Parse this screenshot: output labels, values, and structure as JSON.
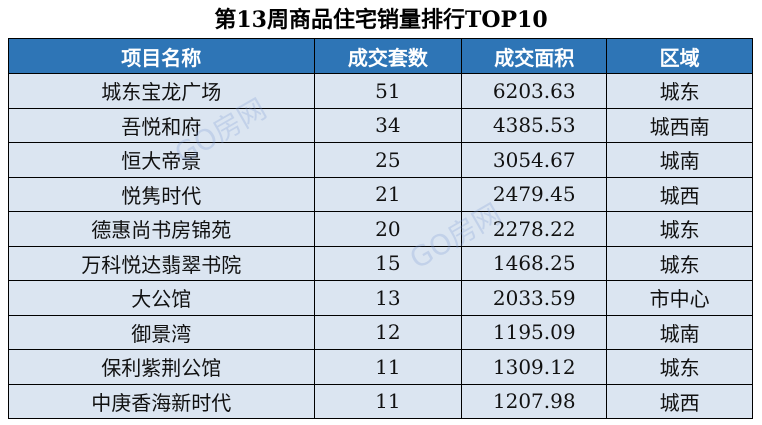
{
  "title": "第13周商品住宅销量排行TOP10",
  "table": {
    "header": [
      "项目名称",
      "成交套数",
      "成交面积",
      "区域"
    ],
    "rows": [
      [
        "城东宝龙广场",
        "51",
        "6203.63",
        "城东"
      ],
      [
        "吾悦和府",
        "34",
        "4385.53",
        "城西南"
      ],
      [
        "恒大帝景",
        "25",
        "3054.67",
        "城南"
      ],
      [
        "悦隽时代",
        "21",
        "2479.45",
        "城西"
      ],
      [
        "德惠尚书房锦苑",
        "20",
        "2278.22",
        "城东"
      ],
      [
        "万科悦达翡翠书院",
        "15",
        "1468.25",
        "城东"
      ],
      [
        "大公馆",
        "13",
        "2033.59",
        "市中心"
      ],
      [
        "御景湾",
        "12",
        "1195.09",
        "城南"
      ],
      [
        "保利紫荆公馆",
        "11",
        "1309.12",
        "城东"
      ],
      [
        "中庚香海新时代",
        "11",
        "1207.98",
        "城西"
      ]
    ]
  },
  "watermark": "GO房网"
}
